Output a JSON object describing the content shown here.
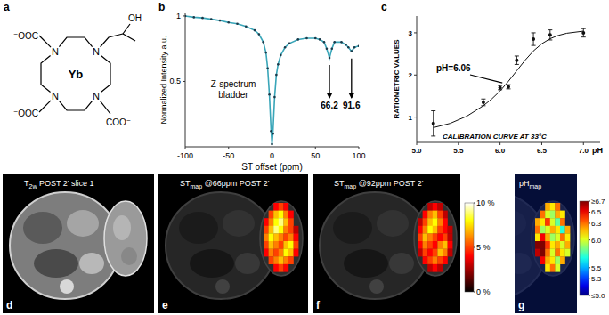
{
  "structure": {
    "label": "a",
    "metal": "Yb",
    "atoms": [
      "N",
      "N",
      "N",
      "N"
    ],
    "groups": [
      "⁻OOC",
      "⁻OOC",
      "COO⁻",
      "OH"
    ]
  },
  "chart_data": [
    {
      "type": "line",
      "panel": "b",
      "y_label": "Normalized Intensity a.u.",
      "x_label": "ST offset (ppm)",
      "annotation": [
        "Z-spectrum",
        "bladder"
      ],
      "peaks": [
        66.2,
        91.6
      ],
      "x": [
        -100,
        -90,
        -80,
        -70,
        -60,
        -50,
        -40,
        -30,
        -20,
        -15,
        -10,
        -7,
        -5,
        -3,
        -1,
        0,
        1,
        3,
        5,
        7,
        10,
        15,
        20,
        30,
        40,
        50,
        55,
        60,
        63,
        66.2,
        69,
        72,
        80,
        85,
        88,
        91.6,
        95,
        100
      ],
      "values": [
        1.0,
        0.99,
        0.985,
        0.975,
        0.965,
        0.95,
        0.94,
        0.92,
        0.89,
        0.86,
        0.8,
        0.72,
        0.6,
        0.4,
        0.12,
        0.02,
        0.1,
        0.38,
        0.55,
        0.63,
        0.7,
        0.76,
        0.79,
        0.82,
        0.83,
        0.83,
        0.82,
        0.8,
        0.75,
        0.68,
        0.75,
        0.8,
        0.8,
        0.78,
        0.76,
        0.73,
        0.76,
        0.77
      ],
      "color": "#3aa6b9",
      "marker": "circle",
      "xlim": [
        -100,
        100
      ],
      "xticks": [
        -100,
        -50,
        0,
        50,
        100
      ],
      "ylim": [
        0,
        1.02
      ],
      "yticks": [
        0.5,
        1
      ],
      "grid": false
    },
    {
      "type": "scatter",
      "panel": "c",
      "title": "CALIBRATION CURVE AT 33°C",
      "y_label": "RATIOMETRIC VALUES",
      "x_label": "pH",
      "annotation": {
        "text": "pH=6.06",
        "x": 6.06,
        "y": 1.75
      },
      "series": [
        {
          "type": "scatter",
          "color": "#111111",
          "marker": "circle",
          "x": [
            5.2,
            5.8,
            6.0,
            6.1,
            6.2,
            6.4,
            6.6,
            7.0
          ],
          "values": [
            0.85,
            1.35,
            1.7,
            1.72,
            2.35,
            2.85,
            2.95,
            3.0
          ],
          "errors": [
            0.3,
            0.08,
            0.05,
            0.05,
            0.1,
            0.15,
            0.12,
            0.1
          ]
        },
        {
          "type": "line",
          "color": "#111111",
          "x": [
            5.2,
            5.4,
            5.6,
            5.8,
            5.9,
            6.0,
            6.1,
            6.2,
            6.3,
            6.4,
            6.5,
            6.6,
            6.7,
            6.8,
            7.0
          ],
          "values": [
            0.75,
            0.85,
            1.02,
            1.27,
            1.43,
            1.62,
            1.85,
            2.1,
            2.35,
            2.57,
            2.74,
            2.86,
            2.94,
            2.99,
            3.04
          ]
        }
      ],
      "xlim": [
        5.0,
        7.2
      ],
      "xticks": [
        {
          "value": 5,
          "label": "5.0"
        },
        5.5,
        {
          "value": 6,
          "label": "6.0"
        },
        6.5,
        {
          "value": 7,
          "label": "7.0"
        }
      ],
      "ylim": [
        0.4,
        3.4
      ],
      "yticks": [
        1,
        2,
        3
      ],
      "grid": false
    }
  ],
  "images": [
    {
      "label": "d",
      "title": {
        "main": "T",
        "sub": "2w",
        "rest": " POST 2' slice 1"
      }
    },
    {
      "label": "e",
      "title": {
        "main": "ST",
        "sub": "map",
        "rest": " @66ppm POST 2'"
      },
      "cells": [
        [
          null,
          null,
          4,
          5,
          4,
          null,
          null
        ],
        [
          null,
          5,
          7,
          8,
          6,
          4,
          null
        ],
        [
          4,
          6,
          8,
          9,
          7,
          5,
          null
        ],
        [
          5,
          7,
          9,
          8,
          6,
          5,
          3
        ],
        [
          6,
          8,
          7,
          6,
          5,
          6,
          4
        ],
        [
          5,
          7,
          6,
          5,
          7,
          8,
          5
        ],
        [
          4,
          6,
          5,
          6,
          8,
          7,
          4
        ],
        [
          null,
          5,
          6,
          7,
          6,
          5,
          null
        ],
        [
          null,
          null,
          4,
          5,
          4,
          null,
          null
        ]
      ]
    },
    {
      "label": "f",
      "title": {
        "main": "ST",
        "sub": "map",
        "rest": " @92ppm POST 2'"
      },
      "cells": [
        [
          null,
          null,
          3,
          4,
          3,
          null,
          null
        ],
        [
          null,
          4,
          6,
          7,
          5,
          3,
          null
        ],
        [
          3,
          5,
          7,
          8,
          6,
          4,
          null
        ],
        [
          4,
          6,
          8,
          7,
          5,
          4,
          3
        ],
        [
          5,
          7,
          6,
          5,
          4,
          5,
          3
        ],
        [
          4,
          6,
          5,
          4,
          6,
          7,
          4
        ],
        [
          3,
          5,
          4,
          5,
          7,
          6,
          3
        ],
        [
          null,
          4,
          5,
          6,
          5,
          4,
          null
        ],
        [
          null,
          null,
          3,
          4,
          3,
          null,
          null
        ]
      ],
      "colorbar": {
        "range": [
          0,
          10
        ],
        "ticks": [
          {
            "value": 10,
            "label": "10 %"
          },
          {
            "value": 5,
            "label": "5 %"
          },
          {
            "value": 0,
            "label": "0 %"
          }
        ]
      }
    },
    {
      "label": "g",
      "title": {
        "main": "pH",
        "sub": "map",
        "rest": ""
      },
      "cells": [
        [
          null,
          null,
          6.2,
          6.1,
          6.3,
          null,
          null
        ],
        [
          null,
          6.3,
          6.0,
          5.9,
          6.2,
          6.1,
          null
        ],
        [
          6.2,
          6.1,
          6.4,
          6.0,
          5.8,
          6.3,
          null
        ],
        [
          6.3,
          5.9,
          6.0,
          6.2,
          6.1,
          5.7,
          6.2
        ],
        [
          6.1,
          6.5,
          6.2,
          5.9,
          6.0,
          6.3,
          6.1
        ],
        [
          6.7,
          6.7,
          6.4,
          6.1,
          6.2,
          6.0,
          6.2
        ],
        [
          6.6,
          6.7,
          6.3,
          6.0,
          6.3,
          6.1,
          6.0
        ],
        [
          null,
          6.5,
          6.2,
          6.1,
          5.9,
          6.2,
          null
        ],
        [
          null,
          null,
          6.1,
          6.3,
          6.0,
          null,
          null
        ]
      ],
      "colorbar": {
        "range": [
          5.0,
          6.7
        ],
        "ticks": [
          {
            "value": 6.7,
            "label": "≥6.7"
          },
          6.5,
          6.3,
          {
            "value": 6,
            "label": "6.0"
          },
          5.5,
          5.3,
          {
            "value": 5,
            "label": "≤5.0"
          }
        ]
      }
    }
  ]
}
